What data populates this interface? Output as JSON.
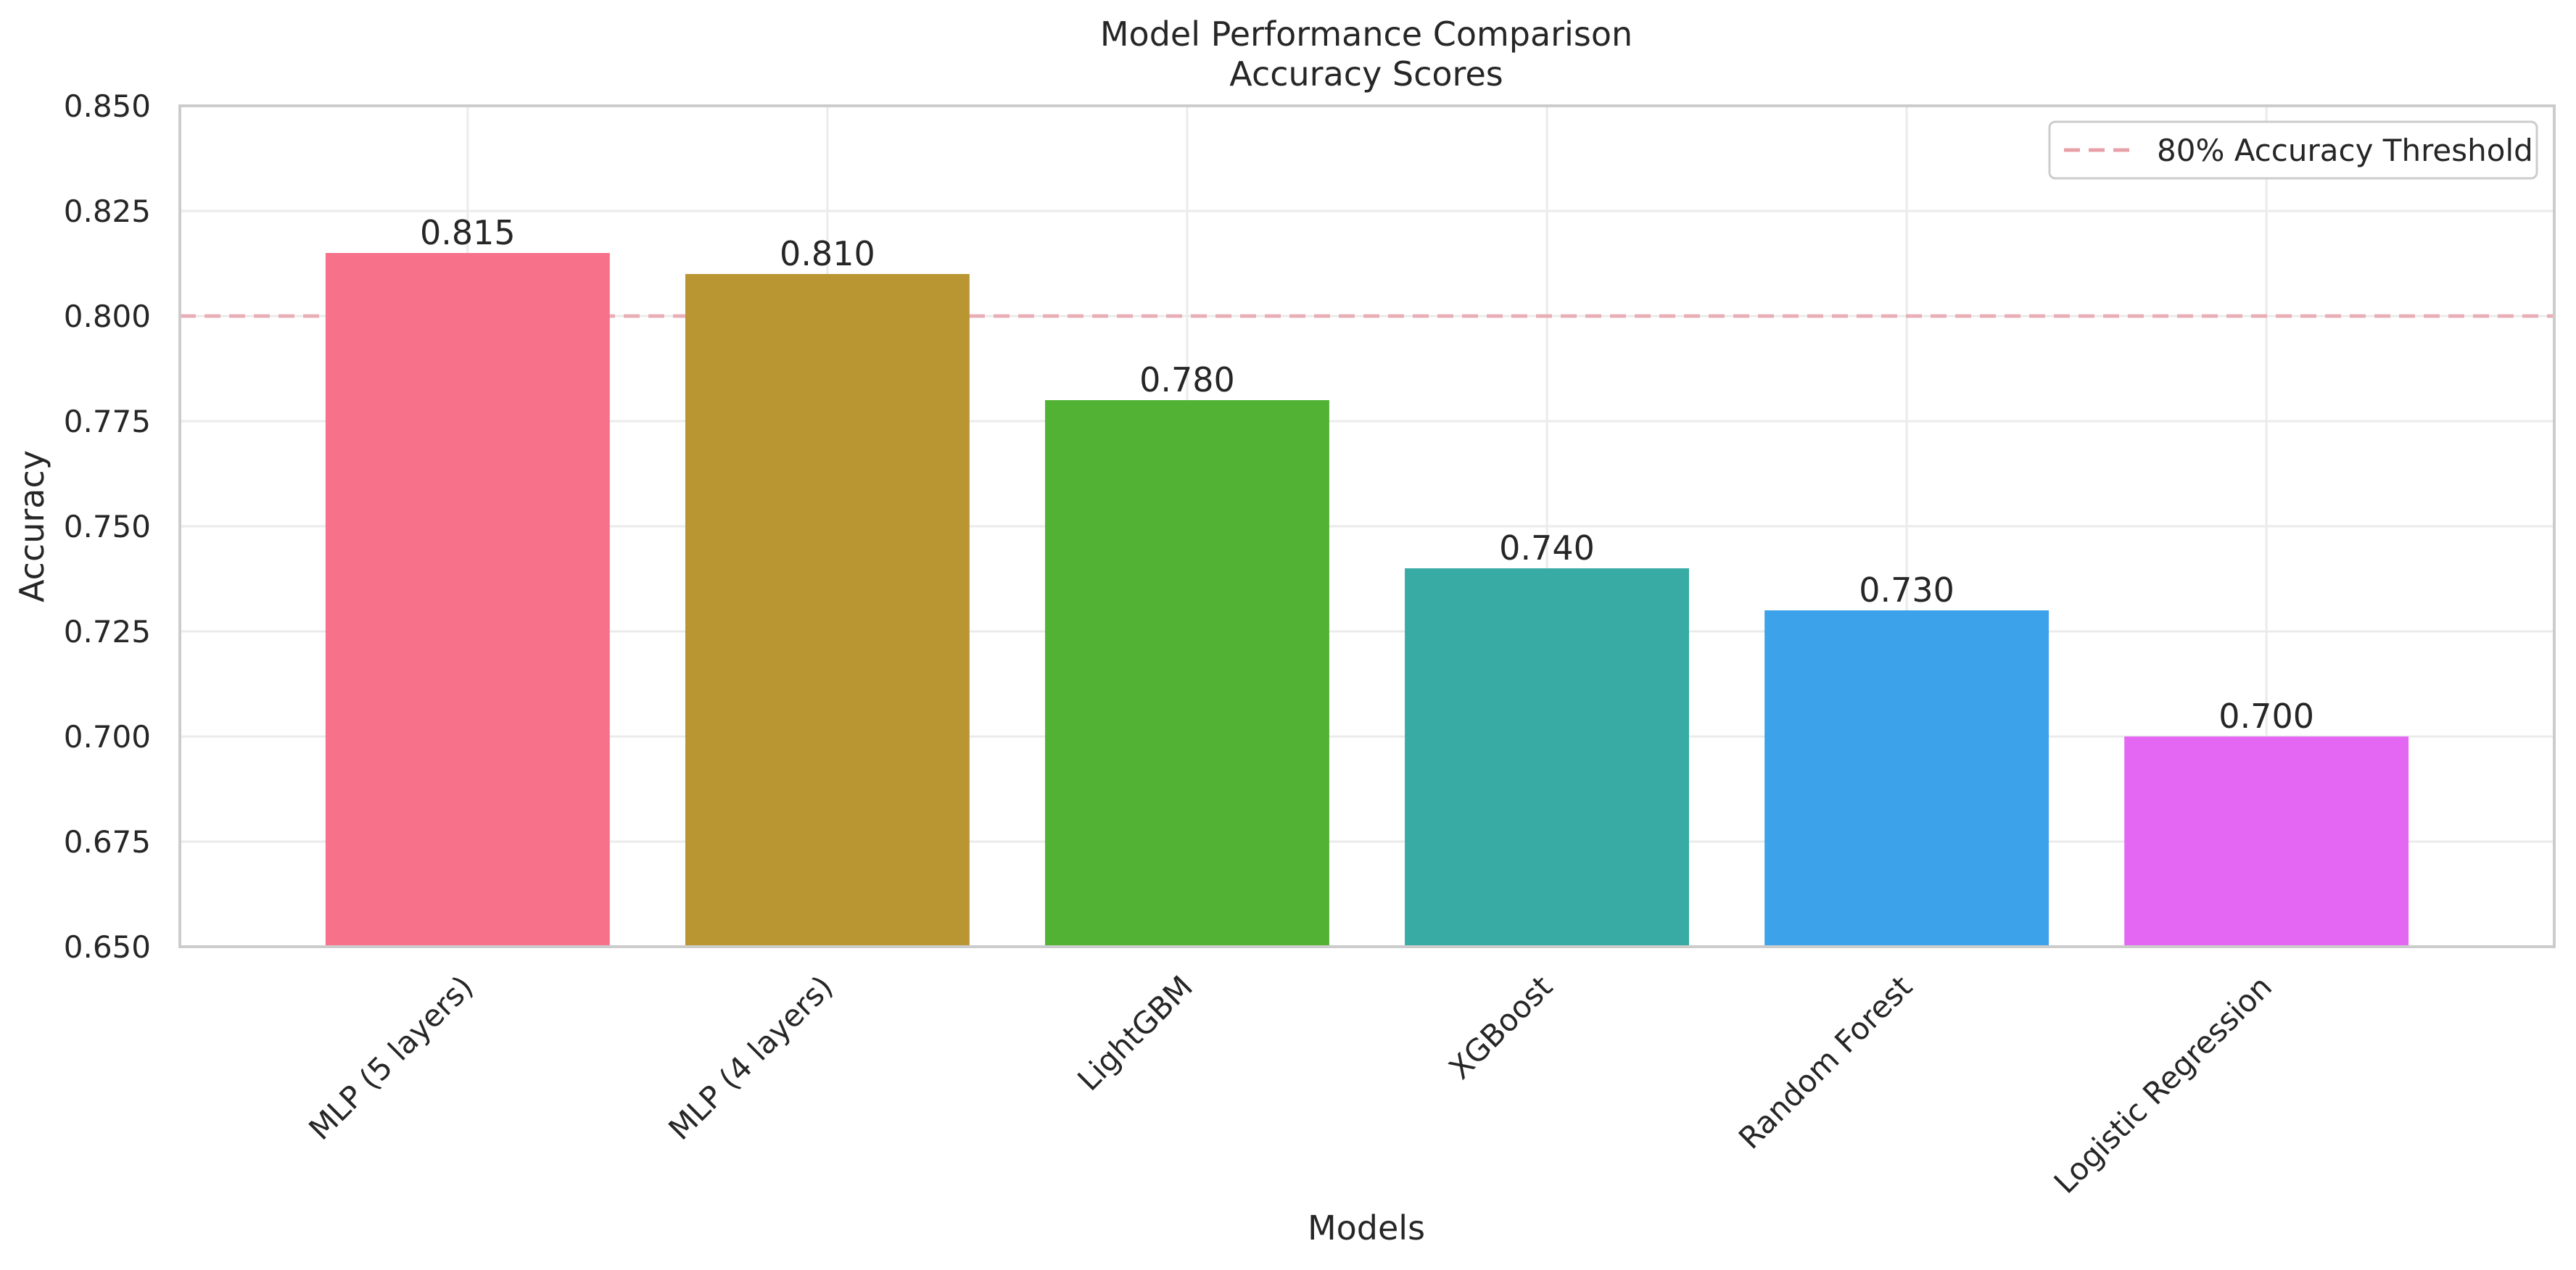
{
  "chart_data": {
    "type": "bar",
    "title": "Model Performance Comparison",
    "subtitle": "Accuracy Scores",
    "xlabel": "Models",
    "ylabel": "Accuracy",
    "categories": [
      "MLP (5 layers)",
      "MLP (4 layers)",
      "LightGBM",
      "XGBoost",
      "Random Forest",
      "Logistic Regression"
    ],
    "values": [
      0.815,
      0.81,
      0.78,
      0.74,
      0.73,
      0.7
    ],
    "value_labels": [
      "0.815",
      "0.810",
      "0.780",
      "0.740",
      "0.730",
      "0.700"
    ],
    "colors": [
      "#f7718a",
      "#b99632",
      "#52b234",
      "#38aba5",
      "#3ca2ea",
      "#e467f3"
    ],
    "ylim": [
      0.65,
      0.85
    ],
    "yticks": [
      0.65,
      0.675,
      0.7,
      0.725,
      0.75,
      0.775,
      0.8,
      0.825,
      0.85
    ],
    "ytick_labels": [
      "0.650",
      "0.675",
      "0.700",
      "0.725",
      "0.750",
      "0.775",
      "0.800",
      "0.825",
      "0.850"
    ],
    "threshold": {
      "value": 0.8,
      "label": "80% Accuracy Threshold",
      "color": "#e8a0a8",
      "style": "dashed"
    },
    "legend": {
      "placement": "top-right"
    },
    "grid": true,
    "xtick_rotation": 45
  }
}
